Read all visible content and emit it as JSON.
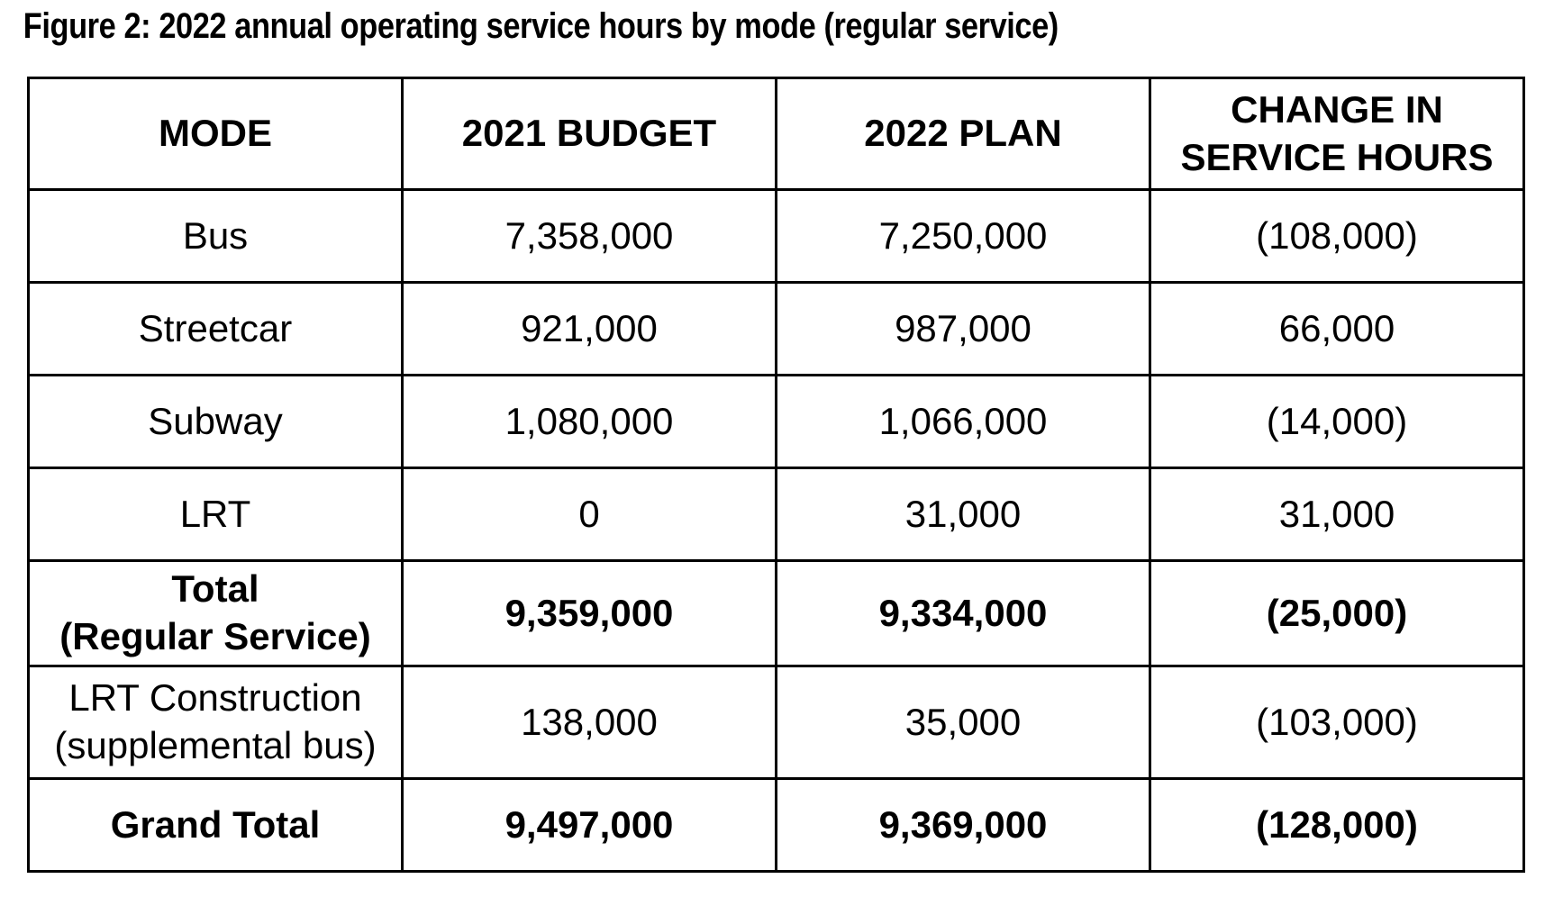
{
  "figure": {
    "title": "Figure 2: 2022 annual operating service hours by mode (regular service)"
  },
  "table": {
    "columns": [
      "MODE",
      "2021 BUDGET",
      "2022 PLAN",
      "CHANGE IN\nSERVICE HOURS"
    ],
    "rows": [
      {
        "mode": "Bus",
        "budget_2021": "7,358,000",
        "plan_2022": "7,250,000",
        "change": "(108,000)"
      },
      {
        "mode": "Streetcar",
        "budget_2021": "921,000",
        "plan_2022": "987,000",
        "change": "66,000"
      },
      {
        "mode": "Subway",
        "budget_2021": "1,080,000",
        "plan_2022": "1,066,000",
        "change": "(14,000)"
      },
      {
        "mode": "LRT",
        "budget_2021": "0",
        "plan_2022": "31,000",
        "change": "31,000"
      },
      {
        "mode": "Total\n(Regular Service)",
        "budget_2021": "9,359,000",
        "plan_2022": "9,334,000",
        "change": "(25,000)"
      },
      {
        "mode": "LRT Construction\n(supplemental bus)",
        "budget_2021": "138,000",
        "plan_2022": "35,000",
        "change": "(103,000)"
      },
      {
        "mode": "Grand Total",
        "budget_2021": "9,497,000",
        "plan_2022": "9,369,000",
        "change": "(128,000)"
      }
    ]
  },
  "colors": {
    "text": "#000000",
    "border": "#000000",
    "background": "#ffffff"
  }
}
